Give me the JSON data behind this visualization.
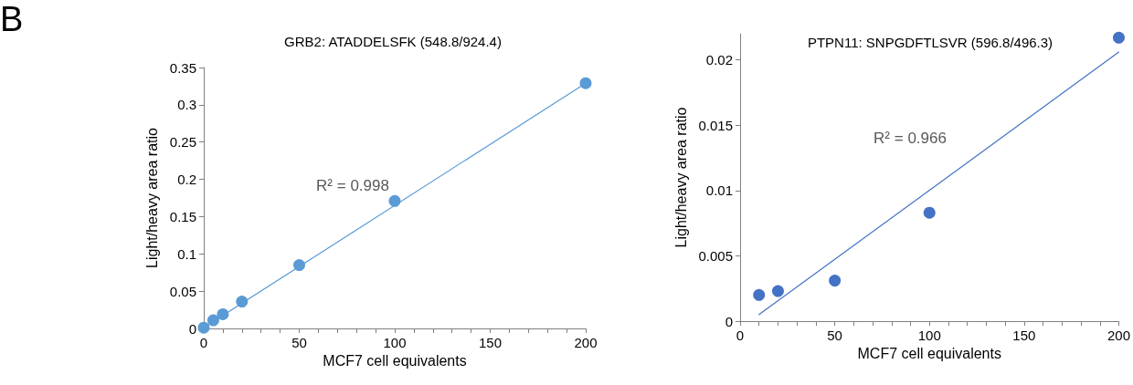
{
  "chart_data": [
    {
      "type": "scatter",
      "title": "GRB2: ATADDELSFK (548.8/924.4)",
      "xlabel": "MCF7 cell equivalents",
      "ylabel": "Light/heavy area ratio",
      "series": [
        {
          "color": "#5b9bd5",
          "marker": "circle",
          "x": [
            0,
            5,
            10,
            20,
            50,
            100,
            200
          ],
          "values": [
            0.001,
            0.011,
            0.019,
            0.036,
            0.085,
            0.171,
            0.329
          ]
        },
        {
          "type": "line",
          "color": "#5b9bd5",
          "marker": "none",
          "line_style": "solid",
          "x": [
            0,
            200
          ],
          "values": [
            0.001,
            0.329
          ]
        }
      ],
      "xlim": [
        0,
        200
      ],
      "ylim": [
        0,
        0.35
      ],
      "xticks": [
        0,
        {
          "value": 10,
          "label": null
        },
        {
          "value": 20,
          "label": null
        },
        {
          "value": 30,
          "label": null
        },
        {
          "value": 40,
          "label": null
        },
        50,
        {
          "value": 60,
          "label": null
        },
        {
          "value": 70,
          "label": null
        },
        {
          "value": 80,
          "label": null
        },
        {
          "value": 90,
          "label": null
        },
        100,
        {
          "value": 110,
          "label": null
        },
        {
          "value": 120,
          "label": null
        },
        {
          "value": 130,
          "label": null
        },
        {
          "value": 140,
          "label": null
        },
        150,
        {
          "value": 160,
          "label": null
        },
        {
          "value": 170,
          "label": null
        },
        {
          "value": 180,
          "label": null
        },
        {
          "value": 190,
          "label": null
        },
        200
      ],
      "yticks": [
        0,
        0.05,
        0.1,
        0.15,
        0.2,
        0.25,
        0.3,
        0.35
      ],
      "grid": false,
      "annotations": [
        "B",
        "R² = 0.998"
      ]
    },
    {
      "type": "scatter",
      "title": "PTPN11: SNPGDFTLSVR (596.8/496.3)",
      "xlabel": "MCF7 cell equivalents",
      "ylabel": "Light/heavy area ratio",
      "series": [
        {
          "color": "#4472c4",
          "marker": "circle",
          "x": [
            10,
            20,
            50,
            100,
            200
          ],
          "values": [
            0.002,
            0.0023,
            0.0031,
            0.0083,
            0.0217
          ]
        },
        {
          "type": "line",
          "color": "#4472c4",
          "marker": "none",
          "line_style": "solid",
          "x": [
            10,
            200
          ],
          "values": [
            0.0005,
            0.0206
          ]
        }
      ],
      "xlim": [
        0,
        200
      ],
      "ylim": [
        0,
        0.022
      ],
      "xticks": [
        0,
        {
          "value": 10,
          "label": null
        },
        {
          "value": 20,
          "label": null
        },
        {
          "value": 30,
          "label": null
        },
        {
          "value": 40,
          "label": null
        },
        50,
        {
          "value": 60,
          "label": null
        },
        {
          "value": 70,
          "label": null
        },
        {
          "value": 80,
          "label": null
        },
        {
          "value": 90,
          "label": null
        },
        100,
        {
          "value": 110,
          "label": null
        },
        {
          "value": 120,
          "label": null
        },
        {
          "value": 130,
          "label": null
        },
        {
          "value": 140,
          "label": null
        },
        150,
        {
          "value": 160,
          "label": null
        },
        {
          "value": 170,
          "label": null
        },
        {
          "value": 180,
          "label": null
        },
        {
          "value": 190,
          "label": null
        },
        200
      ],
      "yticks": [
        0,
        0.005,
        0.01,
        0.015,
        0.02
      ],
      "grid": false,
      "annotations": [
        "R² = 0.966"
      ]
    }
  ]
}
